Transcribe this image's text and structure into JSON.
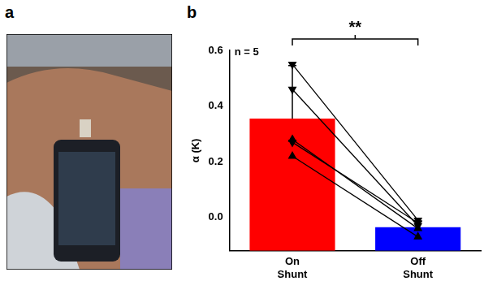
{
  "panel_a": {
    "label": "a"
  },
  "chart_data": {
    "panel_label": "b",
    "type": "bar",
    "categories": [
      "On Shunt",
      "Off Shunt"
    ],
    "values": [
      0.355,
      -0.035
    ],
    "errors": [
      0.19,
      0.02
    ],
    "colors": [
      "#ff0000",
      "#0000ff"
    ],
    "y_label": "α (K)",
    "ylim": [
      -0.12,
      0.6
    ],
    "yticks": [
      {
        "value": 0,
        "label": "0.0"
      },
      {
        "value": 0.2,
        "label": "0.2"
      },
      {
        "value": 0.4,
        "label": "0.4"
      },
      {
        "value": 0.6,
        "label": "0.6"
      }
    ],
    "grid": false,
    "series": [
      {
        "type": "line",
        "marker": "triangle_down",
        "color": "#000000",
        "values": [
          0.55,
          -0.01
        ]
      },
      {
        "type": "line",
        "marker": "triangle_down",
        "color": "#000000",
        "values": [
          0.46,
          -0.03
        ]
      },
      {
        "type": "line",
        "marker": "triangle",
        "color": "#000000",
        "values": [
          0.28,
          -0.04
        ]
      },
      {
        "type": "line",
        "marker": "triangle_down",
        "color": "#000000",
        "values": [
          0.27,
          -0.02
        ]
      },
      {
        "type": "line",
        "marker": "triangle",
        "color": "#000000",
        "values": [
          0.22,
          -0.07
        ]
      }
    ],
    "annotations": [
      {
        "text": "n = 5"
      },
      {
        "text": "**",
        "bracket": [
          "On Shunt",
          "Off Shunt"
        ]
      }
    ]
  }
}
